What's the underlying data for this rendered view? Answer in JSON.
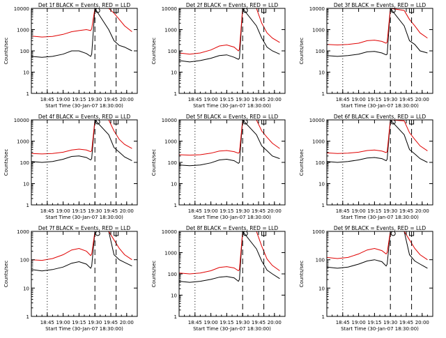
{
  "window": {
    "kind": "IDL direct graphics output"
  },
  "colors": {
    "events": "#000000",
    "lld": "#e00000",
    "axis": "#000000",
    "background": "#ffffff"
  },
  "chart_data": [
    {
      "type": "line",
      "title": "Det 1f BLACK = Events, RED = LLD",
      "ylabel": "Counts/sec",
      "xlabel": "Start Time (30-Jan-07 18:30:00)",
      "ylog": true,
      "ylim": [
        1,
        10000
      ],
      "xticks": [
        "18:45",
        "19:00",
        "19:15",
        "19:30",
        "19:45",
        "20:00"
      ],
      "yticks": [
        "1",
        "10",
        "100",
        "1000",
        "10000"
      ],
      "series": [
        {
          "color": "#000000",
          "x": [
            "18:30",
            "18:40",
            "18:50",
            "19:00",
            "19:08",
            "19:15",
            "19:22",
            "19:26",
            "19:27",
            "19:30",
            "19:43",
            "19:48",
            "19:53",
            "19:58",
            "20:05"
          ],
          "y": [
            55,
            50,
            55,
            70,
            100,
            100,
            75,
            55,
            70,
            10000,
            1000,
            300,
            180,
            150,
            100
          ]
        },
        {
          "color": "#e00000",
          "x": [
            "18:30",
            "18:40",
            "18:50",
            "19:00",
            "19:08",
            "19:15",
            "19:22",
            "19:26",
            "19:27",
            "19:30",
            "19:43",
            "19:48",
            "19:53",
            "19:58",
            "20:05"
          ],
          "y": [
            500,
            450,
            480,
            600,
            800,
            900,
            1000,
            900,
            1100,
            10000,
            10000,
            6000,
            3000,
            1500,
            800
          ]
        }
      ],
      "markers": [
        "19:30",
        "19:50"
      ]
    },
    {
      "type": "line",
      "title": "Det 2f BLACK = Events, RED = LLD",
      "ylabel": "Counts/sec",
      "xlabel": "Start Time (30-Jan-07 18:30:00)",
      "ylog": true,
      "ylim": [
        1,
        10000
      ],
      "xticks": [
        "18:45",
        "19:00",
        "19:15",
        "19:30",
        "19:45",
        "20:00"
      ],
      "yticks": [
        "1",
        "10",
        "100",
        "1000",
        "10000"
      ],
      "series": [
        {
          "color": "#000000",
          "x": [
            "18:30",
            "18:40",
            "18:50",
            "19:00",
            "19:08",
            "19:15",
            "19:22",
            "19:26",
            "19:27",
            "19:30",
            "19:43",
            "19:48",
            "19:53",
            "19:58",
            "20:05"
          ],
          "y": [
            35,
            30,
            35,
            45,
            60,
            65,
            50,
            40,
            45,
            10000,
            1500,
            400,
            150,
            100,
            70
          ]
        },
        {
          "color": "#e00000",
          "x": [
            "18:30",
            "18:40",
            "18:50",
            "19:00",
            "19:08",
            "19:15",
            "19:22",
            "19:26",
            "19:27",
            "19:30",
            "19:43",
            "19:48",
            "19:53",
            "19:58",
            "20:05"
          ],
          "y": [
            80,
            70,
            80,
            110,
            170,
            190,
            150,
            100,
            120,
            10000,
            10000,
            2000,
            700,
            400,
            250
          ]
        }
      ],
      "markers": [
        "19:30",
        "19:50"
      ]
    },
    {
      "type": "line",
      "title": "Det 3f BLACK = Events, RED = LLD",
      "ylabel": "Counts/sec",
      "xlabel": "Start Time (30-Jan-07 18:30:00)",
      "ylog": true,
      "ylim": [
        1,
        10000
      ],
      "xticks": [
        "18:45",
        "19:00",
        "19:15",
        "19:30",
        "19:45",
        "20:00"
      ],
      "yticks": [
        "1",
        "10",
        "100",
        "1000",
        "10000"
      ],
      "series": [
        {
          "color": "#000000",
          "x": [
            "18:30",
            "18:40",
            "18:50",
            "19:00",
            "19:08",
            "19:15",
            "19:22",
            "19:26",
            "19:27",
            "19:30",
            "19:43",
            "19:48",
            "19:53",
            "19:58",
            "20:05"
          ],
          "y": [
            60,
            55,
            60,
            70,
            90,
            95,
            80,
            65,
            70,
            10000,
            1500,
            300,
            200,
            100,
            80
          ]
        },
        {
          "color": "#e00000",
          "x": [
            "18:30",
            "18:40",
            "18:50",
            "19:00",
            "19:08",
            "19:15",
            "19:22",
            "19:26",
            "19:27",
            "19:30",
            "19:43",
            "19:48",
            "19:53",
            "19:58",
            "20:05"
          ],
          "y": [
            200,
            190,
            200,
            230,
            300,
            320,
            280,
            230,
            260,
            10000,
            8000,
            3000,
            1500,
            700,
            400
          ]
        }
      ],
      "markers": [
        "19:30",
        "19:50"
      ]
    },
    {
      "type": "line",
      "title": "Det 4f BLACK = Events, RED = LLD",
      "ylabel": "Counts/sec",
      "xlabel": "Start Time (30-Jan-07 18:30:00)",
      "ylog": true,
      "ylim": [
        1,
        10000
      ],
      "xticks": [
        "18:45",
        "19:00",
        "19:15",
        "19:30",
        "19:45",
        "20:00"
      ],
      "yticks": [
        "1",
        "10",
        "100",
        "1000",
        "10000"
      ],
      "series": [
        {
          "color": "#000000",
          "x": [
            "18:30",
            "18:40",
            "18:50",
            "19:00",
            "19:08",
            "19:15",
            "19:22",
            "19:26",
            "19:27",
            "19:30",
            "19:43",
            "19:48",
            "19:53",
            "19:58",
            "20:05"
          ],
          "y": [
            110,
            100,
            110,
            140,
            190,
            200,
            170,
            130,
            150,
            10000,
            2000,
            500,
            300,
            180,
            120
          ]
        },
        {
          "color": "#e00000",
          "x": [
            "18:30",
            "18:40",
            "18:50",
            "19:00",
            "19:08",
            "19:15",
            "19:22",
            "19:26",
            "19:27",
            "19:30",
            "19:43",
            "19:48",
            "19:53",
            "19:58",
            "20:05"
          ],
          "y": [
            260,
            250,
            260,
            300,
            380,
            420,
            380,
            320,
            350,
            10000,
            10000,
            3000,
            1200,
            700,
            450
          ]
        }
      ],
      "markers": [
        "19:30",
        "19:50"
      ]
    },
    {
      "type": "line",
      "title": "Det 5f BLACK = Events, RED = LLD",
      "ylabel": "Counts/sec",
      "xlabel": "Start Time (30-Jan-07 18:30:00)",
      "ylog": true,
      "ylim": [
        1,
        10000
      ],
      "xticks": [
        "18:45",
        "19:00",
        "19:15",
        "19:30",
        "19:45",
        "20:00"
      ],
      "yticks": [
        "1",
        "10",
        "100",
        "1000",
        "10000"
      ],
      "series": [
        {
          "color": "#000000",
          "x": [
            "18:30",
            "18:40",
            "18:50",
            "19:00",
            "19:08",
            "19:15",
            "19:22",
            "19:26",
            "19:27",
            "19:30",
            "19:43",
            "19:48",
            "19:53",
            "19:58",
            "20:05"
          ],
          "y": [
            75,
            70,
            75,
            95,
            130,
            140,
            120,
            90,
            100,
            10000,
            2000,
            600,
            350,
            200,
            150
          ]
        },
        {
          "color": "#e00000",
          "x": [
            "18:30",
            "18:40",
            "18:50",
            "19:00",
            "19:08",
            "19:15",
            "19:22",
            "19:26",
            "19:27",
            "19:30",
            "19:43",
            "19:48",
            "19:53",
            "19:58",
            "20:05"
          ],
          "y": [
            230,
            220,
            230,
            270,
            340,
            360,
            320,
            270,
            300,
            10000,
            10000,
            3000,
            1500,
            800,
            450
          ]
        }
      ],
      "markers": [
        "19:30",
        "19:50"
      ]
    },
    {
      "type": "line",
      "title": "Det 6f BLACK = Events, RED = LLD",
      "ylabel": "Counts/sec",
      "xlabel": "Start Time (30-Jan-07 18:30:00)",
      "ylog": true,
      "ylim": [
        1,
        10000
      ],
      "xticks": [
        "18:45",
        "19:00",
        "19:15",
        "19:30",
        "19:45",
        "20:00"
      ],
      "yticks": [
        "1",
        "10",
        "100",
        "1000",
        "10000"
      ],
      "series": [
        {
          "color": "#000000",
          "x": [
            "18:30",
            "18:40",
            "18:50",
            "19:00",
            "19:08",
            "19:15",
            "19:22",
            "19:26",
            "19:27",
            "19:30",
            "19:43",
            "19:48",
            "19:53",
            "19:58",
            "20:05"
          ],
          "y": [
            110,
            100,
            110,
            130,
            160,
            170,
            150,
            120,
            140,
            10000,
            2000,
            400,
            250,
            150,
            100
          ]
        },
        {
          "color": "#e00000",
          "x": [
            "18:30",
            "18:40",
            "18:50",
            "19:00",
            "19:08",
            "19:15",
            "19:22",
            "19:26",
            "19:27",
            "19:30",
            "19:43",
            "19:48",
            "19:53",
            "19:58",
            "20:05"
          ],
          "y": [
            280,
            260,
            270,
            300,
            360,
            380,
            340,
            290,
            320,
            10000,
            9000,
            2500,
            1200,
            600,
            350
          ]
        }
      ],
      "markers": [
        "19:30",
        "19:50"
      ]
    },
    {
      "type": "line",
      "title": "Det 7f BLACK = Events, RED = LLD",
      "ylabel": "Counts/sec",
      "xlabel": "Start Time (30-Jan-07 18:30:00)",
      "ylog": true,
      "ylim": [
        1,
        1000
      ],
      "xticks": [
        "18:45",
        "19:00",
        "19:15",
        "19:30",
        "19:45",
        "20:00"
      ],
      "yticks": [
        "1",
        "10",
        "100",
        "1000"
      ],
      "series": [
        {
          "color": "#000000",
          "x": [
            "18:30",
            "18:40",
            "18:50",
            "19:00",
            "19:08",
            "19:15",
            "19:22",
            "19:26",
            "19:27",
            "19:30",
            "19:43",
            "19:48",
            "19:53",
            "19:58",
            "20:05"
          ],
          "y": [
            45,
            40,
            45,
            55,
            75,
            85,
            70,
            50,
            60,
            1000,
            1000,
            150,
            100,
            80,
            60
          ]
        },
        {
          "color": "#e00000",
          "x": [
            "18:30",
            "18:40",
            "18:50",
            "19:00",
            "19:08",
            "19:15",
            "19:22",
            "19:26",
            "19:27",
            "19:30",
            "19:43",
            "19:48",
            "19:53",
            "19:58",
            "20:05"
          ],
          "y": [
            100,
            95,
            110,
            150,
            220,
            250,
            200,
            140,
            160,
            1000,
            1000,
            500,
            250,
            150,
            100
          ]
        }
      ],
      "markers": [
        "19:30",
        "19:50"
      ]
    },
    {
      "type": "line",
      "title": "Det 8f BLACK = Events, RED = LLD",
      "ylabel": "Counts/sec",
      "xlabel": "Start Time (30-Jan-07 18:30:00)",
      "ylog": true,
      "ylim": [
        1,
        10000
      ],
      "xticks": [
        "18:45",
        "19:00",
        "19:15",
        "19:30",
        "19:45",
        "20:00"
      ],
      "yticks": [
        "1",
        "10",
        "100",
        "1000",
        "10000"
      ],
      "series": [
        {
          "color": "#000000",
          "x": [
            "18:30",
            "18:40",
            "18:50",
            "19:00",
            "19:08",
            "19:15",
            "19:22",
            "19:26",
            "19:27",
            "19:30",
            "19:43",
            "19:48",
            "19:53",
            "19:58",
            "20:05"
          ],
          "y": [
            45,
            40,
            45,
            55,
            70,
            75,
            65,
            45,
            55,
            10000,
            1500,
            400,
            150,
            100,
            60
          ]
        },
        {
          "color": "#e00000",
          "x": [
            "18:30",
            "18:40",
            "18:50",
            "19:00",
            "19:08",
            "19:15",
            "19:22",
            "19:26",
            "19:27",
            "19:30",
            "19:43",
            "19:48",
            "19:53",
            "19:58",
            "20:05"
          ],
          "y": [
            110,
            100,
            110,
            140,
            200,
            220,
            190,
            140,
            160,
            10000,
            10000,
            2000,
            500,
            250,
            140
          ]
        }
      ],
      "markers": [
        "19:30",
        "19:50"
      ]
    },
    {
      "type": "line",
      "title": "Det 9f BLACK = Events, RED = LLD",
      "ylabel": "Counts/sec",
      "xlabel": "Start Time (30-Jan-07 18:30:00)",
      "ylog": true,
      "ylim": [
        1,
        1000
      ],
      "xticks": [
        "18:45",
        "19:00",
        "19:15",
        "19:30",
        "19:45",
        "20:00"
      ],
      "yticks": [
        "1",
        "10",
        "100",
        "1000"
      ],
      "series": [
        {
          "color": "#000000",
          "x": [
            "18:30",
            "18:40",
            "18:50",
            "19:00",
            "19:08",
            "19:15",
            "19:22",
            "19:26",
            "19:27",
            "19:30",
            "19:43",
            "19:48",
            "19:53",
            "19:58",
            "20:05"
          ],
          "y": [
            55,
            50,
            55,
            70,
            90,
            100,
            85,
            60,
            70,
            1000,
            1000,
            150,
            90,
            70,
            50
          ]
        },
        {
          "color": "#e00000",
          "x": [
            "18:30",
            "18:40",
            "18:50",
            "19:00",
            "19:08",
            "19:15",
            "19:22",
            "19:26",
            "19:27",
            "19:30",
            "19:43",
            "19:48",
            "19:53",
            "19:58",
            "20:05"
          ],
          "y": [
            120,
            110,
            120,
            160,
            220,
            250,
            210,
            160,
            180,
            1000,
            1000,
            500,
            250,
            150,
            100
          ]
        }
      ],
      "markers": [
        "19:30",
        "19:50"
      ]
    }
  ]
}
